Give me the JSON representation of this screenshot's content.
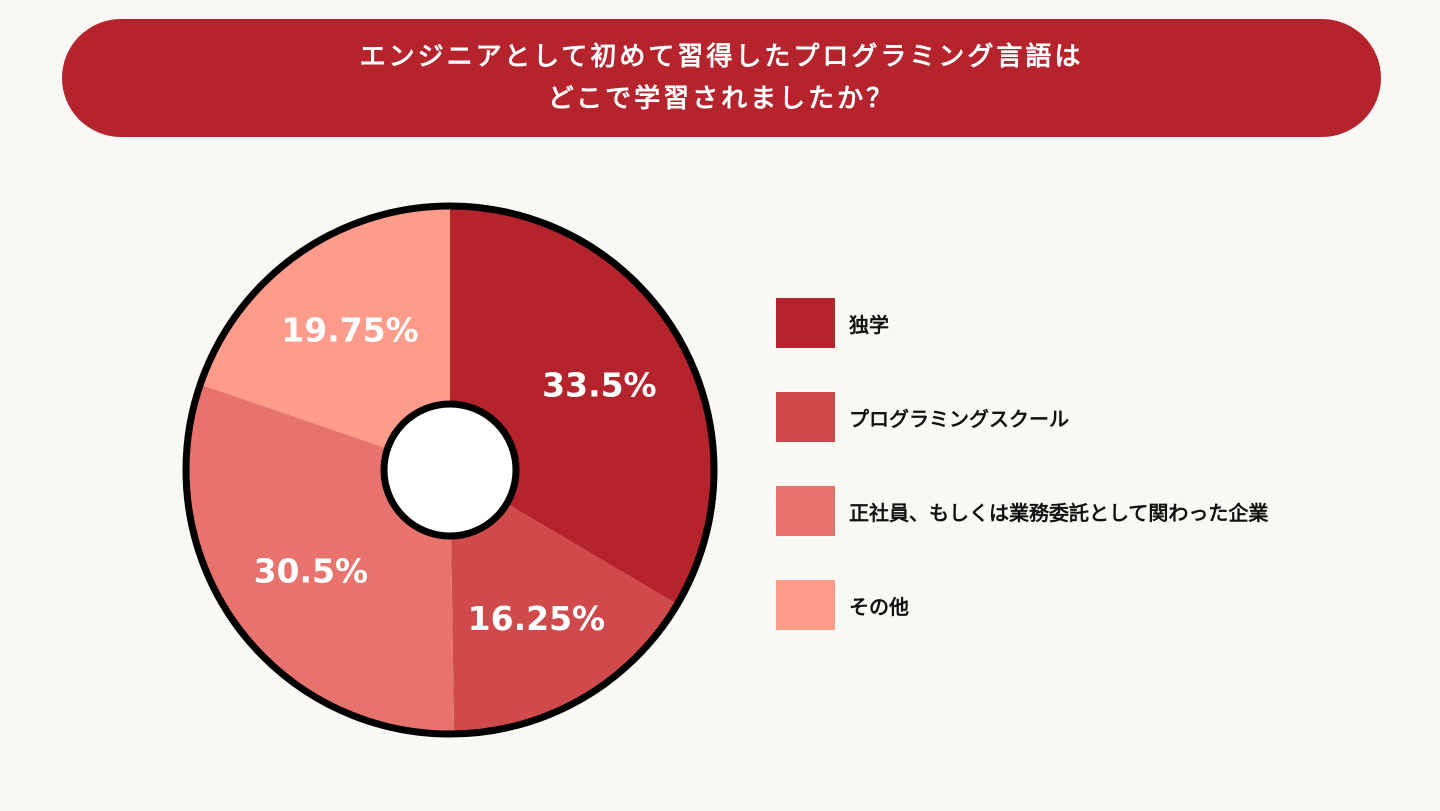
{
  "title": {
    "line1": "エンジニアとして初めて習得したプログラミング言語は",
    "line2": "どこで学習されましたか？"
  },
  "chart_data": {
    "type": "pie",
    "donut": true,
    "start": "top",
    "direction": "clockwise",
    "legend_position": "right",
    "slices": [
      {
        "label": "独学",
        "value": 33.5,
        "display": "33.5%",
        "color": "#b5232d"
      },
      {
        "label": "プログラミングスクール",
        "value": 16.25,
        "display": "16.25%",
        "color": "#d04a4c"
      },
      {
        "label": "正社員、もしくは業務委託として関わった企業",
        "value": 30.5,
        "display": "30.5%",
        "color": "#e8726c"
      },
      {
        "label": "その他",
        "value": 19.75,
        "display": "19.75%",
        "color": "#fe9b8b"
      }
    ]
  }
}
